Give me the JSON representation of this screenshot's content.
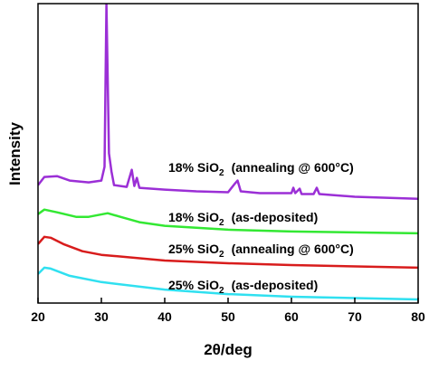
{
  "chart_data": {
    "type": "line",
    "x_label": "2θ/deg",
    "y_label": "Intensity",
    "xlim": [
      20,
      80
    ],
    "xticks": [
      20,
      30,
      40,
      50,
      60,
      70,
      80
    ],
    "ylim": [
      0,
      100
    ],
    "series": [
      {
        "color": "#9b2fd6",
        "x": [
          20,
          21,
          23,
          25,
          28,
          30,
          30.5,
          30.8,
          31.2,
          31.6,
          32,
          34,
          34.8,
          35.2,
          35.6,
          36,
          40,
          45,
          50,
          51,
          51.5,
          52,
          55,
          60,
          60.3,
          60.6,
          61.3,
          61.6,
          63.5,
          64,
          64.4,
          70,
          80
        ],
        "values": [
          39.4,
          42.1,
          42.4,
          40.9,
          40.3,
          40.9,
          45.5,
          100,
          50,
          43.9,
          39.4,
          38.8,
          44.5,
          39.1,
          41.8,
          38.5,
          37.9,
          37.3,
          37,
          39.7,
          40.9,
          37.3,
          36.7,
          36.7,
          38.5,
          36.7,
          38.2,
          36.4,
          36.4,
          38.5,
          36.4,
          35.5,
          34.8
        ]
      },
      {
        "color": "#33e833",
        "x": [
          20,
          21,
          23,
          26,
          28,
          31,
          33,
          36,
          40,
          50,
          60,
          80
        ],
        "values": [
          29.7,
          31.2,
          30.3,
          28.8,
          28.8,
          30,
          28.8,
          27,
          25.8,
          24.5,
          23.9,
          23.3
        ]
      },
      {
        "color": "#d81c1c",
        "x": [
          20,
          21,
          22,
          24,
          27,
          30,
          40,
          50,
          60,
          80
        ],
        "values": [
          19.7,
          22.1,
          21.8,
          19.7,
          17.3,
          16.1,
          14.2,
          13.3,
          12.7,
          11.8
        ]
      },
      {
        "color": "#30e0f0",
        "x": [
          20,
          21,
          22,
          25,
          30,
          40,
          50,
          60,
          80
        ],
        "values": [
          9.7,
          11.8,
          11.5,
          9.1,
          7,
          4.5,
          3,
          2.1,
          1.2
        ]
      }
    ],
    "annotations": [
      {
        "text": "18% SiO",
        "subscript": "2",
        "suffix": "(annealing @ 600°C)"
      },
      {
        "text": "18% SiO",
        "subscript": "2",
        "suffix": "(as-deposited)"
      },
      {
        "text": "25% SiO",
        "subscript": "2",
        "suffix": "(annealing @ 600°C)"
      },
      {
        "text": "25% SiO",
        "subscript": "2",
        "suffix": "(as-deposited)"
      }
    ]
  }
}
